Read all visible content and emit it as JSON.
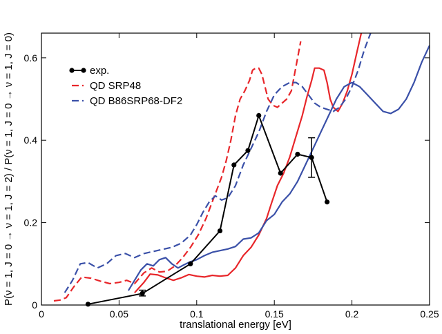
{
  "chart_data": {
    "type": "line",
    "xlabel": "translational energy [eV]",
    "ylabel": "P(ν = 1, J = 0 → ν = 1, J = 2) / P(ν = 1, J = 0 → ν = 1, J = 0)",
    "xlim": [
      0,
      0.25
    ],
    "ylim": [
      0,
      0.66
    ],
    "xticks": [
      0,
      0.05,
      0.1,
      0.15,
      0.2,
      0.25
    ],
    "xtick_labels": [
      "0",
      "0.05",
      "0.1",
      "0.15",
      "0.2",
      "0.25"
    ],
    "yticks": [
      0,
      0.2,
      0.4,
      0.6
    ],
    "ytick_labels": [
      "0",
      "0.2",
      "0.4",
      "0.6"
    ],
    "grid": false,
    "legend_position": "top-left",
    "series": [
      {
        "name": "exp.",
        "kind": "experiment",
        "color": "#000000",
        "x": [
          0.03,
          0.065,
          0.096,
          0.115,
          0.124,
          0.133,
          0.14,
          0.154,
          0.165,
          0.174,
          0.184
        ],
        "y": [
          0.002,
          0.028,
          0.1,
          0.18,
          0.34,
          0.375,
          0.46,
          0.32,
          0.366,
          0.358,
          0.25
        ],
        "error_bars": [
          {
            "x": 0.065,
            "low": 0.022,
            "high": 0.036
          },
          {
            "x": 0.174,
            "low": 0.31,
            "high": 0.406
          }
        ]
      },
      {
        "name": "QD SRP48",
        "color": "#e8262a",
        "segments": [
          {
            "style": "dashed",
            "x": [
              0.008,
              0.012,
              0.016,
              0.021,
              0.026,
              0.032,
              0.038,
              0.044,
              0.05,
              0.055,
              0.06,
              0.066,
              0.071,
              0.076,
              0.081,
              0.086,
              0.091,
              0.096,
              0.101,
              0.106,
              0.111,
              0.116,
              0.119,
              0.122,
              0.125,
              0.128,
              0.131,
              0.134,
              0.136,
              0.138,
              0.14,
              0.142,
              0.144,
              0.146,
              0.149,
              0.152,
              0.155,
              0.158,
              0.161,
              0.164,
              0.167
            ],
            "y": [
              0.01,
              0.012,
              0.018,
              0.045,
              0.068,
              0.065,
              0.058,
              0.052,
              0.055,
              0.06,
              0.052,
              0.078,
              0.09,
              0.08,
              0.082,
              0.095,
              0.115,
              0.14,
              0.17,
              0.21,
              0.26,
              0.31,
              0.35,
              0.4,
              0.46,
              0.5,
              0.52,
              0.545,
              0.57,
              0.575,
              0.575,
              0.56,
              0.53,
              0.5,
              0.485,
              0.48,
              0.49,
              0.5,
              0.52,
              0.58,
              0.64
            ]
          },
          {
            "style": "solid",
            "x": [
              0.06,
              0.066,
              0.07,
              0.075,
              0.08,
              0.085,
              0.09,
              0.095,
              0.1,
              0.105,
              0.11,
              0.115,
              0.12,
              0.125,
              0.13,
              0.135,
              0.14,
              0.145,
              0.148,
              0.152,
              0.156,
              0.16,
              0.164,
              0.168,
              0.171,
              0.174,
              0.176,
              0.179,
              0.182,
              0.184,
              0.186,
              0.188,
              0.191,
              0.194,
              0.197,
              0.2,
              0.203,
              0.206
            ],
            "y": [
              0.03,
              0.055,
              0.075,
              0.073,
              0.066,
              0.06,
              0.066,
              0.074,
              0.07,
              0.068,
              0.072,
              0.07,
              0.072,
              0.09,
              0.12,
              0.14,
              0.17,
              0.21,
              0.245,
              0.29,
              0.32,
              0.36,
              0.41,
              0.46,
              0.505,
              0.545,
              0.575,
              0.575,
              0.57,
              0.54,
              0.5,
              0.48,
              0.47,
              0.49,
              0.52,
              0.56,
              0.61,
              0.66
            ]
          }
        ]
      },
      {
        "name": "QD B86SRP68-DF2",
        "color": "#3a50a8",
        "segments": [
          {
            "style": "dashed",
            "x": [
              0.015,
              0.02,
              0.025,
              0.03,
              0.036,
              0.042,
              0.048,
              0.054,
              0.06,
              0.066,
              0.072,
              0.078,
              0.084,
              0.09,
              0.096,
              0.1,
              0.104,
              0.108,
              0.112,
              0.116,
              0.12,
              0.125,
              0.13,
              0.135,
              0.14,
              0.145,
              0.15,
              0.155,
              0.16,
              0.164,
              0.168,
              0.172,
              0.176,
              0.18,
              0.184,
              0.188,
              0.192,
              0.196,
              0.2,
              0.204,
              0.208,
              0.212
            ],
            "y": [
              0.03,
              0.06,
              0.1,
              0.103,
              0.09,
              0.1,
              0.12,
              0.125,
              0.115,
              0.125,
              0.13,
              0.135,
              0.14,
              0.15,
              0.17,
              0.195,
              0.225,
              0.25,
              0.265,
              0.255,
              0.26,
              0.29,
              0.34,
              0.38,
              0.42,
              0.47,
              0.51,
              0.53,
              0.54,
              0.54,
              0.53,
              0.51,
              0.49,
              0.48,
              0.475,
              0.47,
              0.48,
              0.5,
              0.53,
              0.57,
              0.62,
              0.66
            ]
          },
          {
            "style": "solid",
            "x": [
              0.056,
              0.06,
              0.064,
              0.068,
              0.072,
              0.076,
              0.08,
              0.084,
              0.088,
              0.092,
              0.096,
              0.1,
              0.105,
              0.11,
              0.115,
              0.12,
              0.125,
              0.13,
              0.135,
              0.14,
              0.145,
              0.15,
              0.155,
              0.16,
              0.165,
              0.17,
              0.175,
              0.18,
              0.185,
              0.19,
              0.195,
              0.2,
              0.205,
              0.21,
              0.215,
              0.22,
              0.225,
              0.23,
              0.235,
              0.24,
              0.245,
              0.25
            ],
            "y": [
              0.035,
              0.06,
              0.085,
              0.1,
              0.095,
              0.11,
              0.115,
              0.1,
              0.09,
              0.098,
              0.105,
              0.11,
              0.12,
              0.128,
              0.132,
              0.136,
              0.142,
              0.16,
              0.163,
              0.175,
              0.205,
              0.22,
              0.25,
              0.27,
              0.3,
              0.34,
              0.38,
              0.42,
              0.46,
              0.5,
              0.53,
              0.54,
              0.53,
              0.51,
              0.49,
              0.47,
              0.465,
              0.475,
              0.5,
              0.54,
              0.59,
              0.63
            ]
          }
        ]
      }
    ]
  }
}
